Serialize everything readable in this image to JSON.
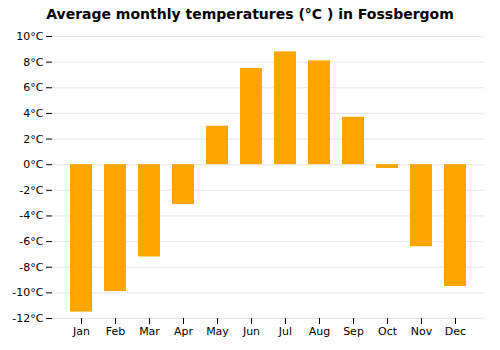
{
  "chart_data": {
    "type": "bar",
    "title": "Average monthly temperatures (°C ) in Fossbergom",
    "categories": [
      "Jan",
      "Feb",
      "Mar",
      "Apr",
      "May",
      "Jun",
      "Jul",
      "Aug",
      "Sep",
      "Oct",
      "Nov",
      "Dec"
    ],
    "values": [
      -11.5,
      -9.9,
      -7.2,
      -3.1,
      3.0,
      7.5,
      8.8,
      8.1,
      3.7,
      -0.3,
      -6.4,
      -9.5
    ],
    "color": "#FFA500",
    "ylim": [
      -12,
      10
    ],
    "yticks": [
      {
        "value": -12,
        "label": "-12°C"
      },
      {
        "value": -10,
        "label": "-10°C"
      },
      {
        "value": -8,
        "label": "-8°C"
      },
      {
        "value": -6,
        "label": "-6°C"
      },
      {
        "value": -4,
        "label": "-4°C"
      },
      {
        "value": -2,
        "label": "-2°C"
      },
      {
        "value": 0,
        "label": "0°C"
      },
      {
        "value": 2,
        "label": "2°C"
      },
      {
        "value": 4,
        "label": "4°C"
      },
      {
        "value": 6,
        "label": "6°C"
      },
      {
        "value": 8,
        "label": "8°C"
      },
      {
        "value": 10,
        "label": "10°C"
      }
    ],
    "grid": true
  }
}
